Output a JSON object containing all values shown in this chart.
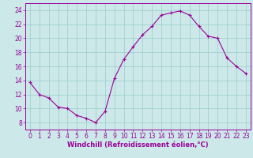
{
  "x": [
    0,
    1,
    2,
    3,
    4,
    5,
    6,
    7,
    8,
    9,
    10,
    11,
    12,
    13,
    14,
    15,
    16,
    17,
    18,
    19,
    20,
    21,
    22,
    23
  ],
  "y": [
    13.7,
    12.0,
    11.5,
    10.2,
    10.0,
    9.0,
    8.6,
    8.0,
    9.6,
    14.3,
    17.0,
    18.8,
    20.5,
    21.7,
    23.3,
    23.6,
    23.9,
    23.3,
    21.7,
    20.3,
    20.0,
    17.2,
    16.0,
    15.0
  ],
  "line_color": "#990099",
  "marker": "+",
  "marker_size": 3.5,
  "marker_linewidth": 0.8,
  "bg_color": "#cce8e8",
  "grid_color": "#99cccc",
  "xlabel": "Windchill (Refroidissement éolien,°C)",
  "xlabel_color": "#990099",
  "xlim": [
    -0.5,
    23.5
  ],
  "ylim": [
    7,
    25
  ],
  "yticks": [
    8,
    10,
    12,
    14,
    16,
    18,
    20,
    22,
    24
  ],
  "xticks": [
    0,
    1,
    2,
    3,
    4,
    5,
    6,
    7,
    8,
    9,
    10,
    11,
    12,
    13,
    14,
    15,
    16,
    17,
    18,
    19,
    20,
    21,
    22,
    23
  ],
  "tick_color": "#990099",
  "spine_color": "#990099",
  "tick_labelsize": 5.5,
  "xlabel_fontsize": 6.0
}
